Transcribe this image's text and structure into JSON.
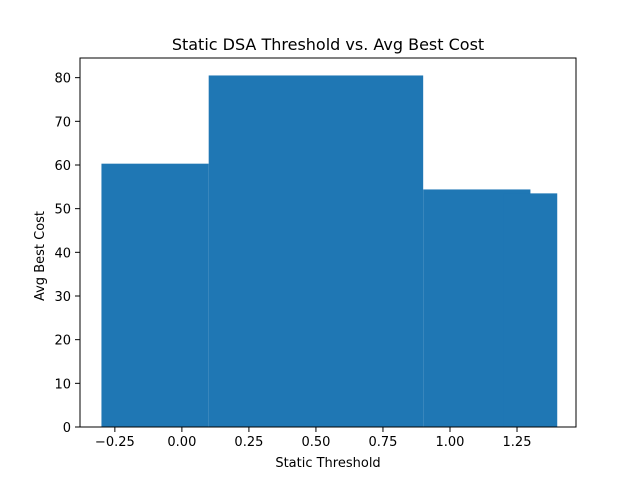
{
  "chart_data": {
    "type": "bar",
    "title": "Static DSA Threshold vs. Avg Best Cost",
    "xlabel": "Static Threshold",
    "ylabel": "Avg Best Cost",
    "xlim": [
      -0.38,
      1.47
    ],
    "ylim": [
      0,
      84.5
    ],
    "xticks": [
      -0.25,
      0.0,
      0.25,
      0.5,
      0.75,
      1.0,
      1.25
    ],
    "xtick_labels": [
      "−0.25",
      "0.00",
      "0.25",
      "0.50",
      "0.75",
      "1.00",
      "1.25"
    ],
    "yticks": [
      0,
      10,
      20,
      30,
      40,
      50,
      60,
      70,
      80
    ],
    "ytick_labels": [
      "0",
      "10",
      "20",
      "30",
      "40",
      "50",
      "60",
      "70",
      "80"
    ],
    "bars": [
      {
        "x": 0.5,
        "width": 0.8,
        "value": 80.5
      },
      {
        "x": -0.1,
        "width": 0.4,
        "value": 60.3
      },
      {
        "x": 1.1,
        "width": 0.4,
        "value": 54.4
      },
      {
        "x": 1.3,
        "width": 0.2,
        "value": 53.5
      }
    ],
    "bar_color": "#1f77b4",
    "grid": false,
    "legend": "none"
  }
}
